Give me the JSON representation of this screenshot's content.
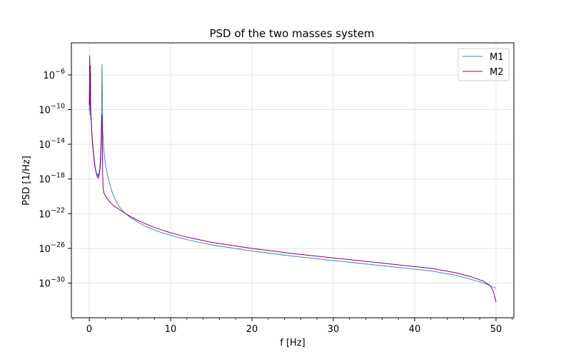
{
  "chart_data": {
    "type": "line",
    "title": "PSD of the two masses system",
    "xlabel": "f [Hz]",
    "ylabel": "PSD [1/Hz]",
    "x_scale": "linear",
    "y_scale": "log",
    "xlim": [
      -2.2,
      52.2
    ],
    "ylim_log10": [
      -34,
      -2.3
    ],
    "x_ticks": [
      0,
      10,
      20,
      30,
      40,
      50
    ],
    "x_tick_labels": [
      "0",
      "10",
      "20",
      "30",
      "40",
      "50"
    ],
    "y_ticks_log10": [
      -30,
      -26,
      -22,
      -18,
      -14,
      -10,
      -6
    ],
    "y_tick_labels": [
      {
        "base": "10",
        "exp": "−30"
      },
      {
        "base": "10",
        "exp": "−26"
      },
      {
        "base": "10",
        "exp": "−22"
      },
      {
        "base": "10",
        "exp": "−18"
      },
      {
        "base": "10",
        "exp": "−14"
      },
      {
        "base": "10",
        "exp": "−10"
      },
      {
        "base": "10",
        "exp": "−6"
      }
    ],
    "grid": true,
    "legend_position": "top-right",
    "series": [
      {
        "name": "M1",
        "color": "#4682b4",
        "points_log10": [
          [
            0.0,
            -10.2
          ],
          [
            0.02,
            -9.0
          ],
          [
            0.04,
            -7.0
          ],
          [
            0.06,
            -4.3
          ],
          [
            0.08,
            -8.5
          ],
          [
            0.1,
            -10.6
          ],
          [
            0.13,
            -9.5
          ],
          [
            0.16,
            -10.3
          ],
          [
            0.2,
            -11.2
          ],
          [
            0.25,
            -11.0
          ],
          [
            0.3,
            -12.4
          ],
          [
            0.4,
            -13.6
          ],
          [
            0.5,
            -14.6
          ],
          [
            0.6,
            -15.6
          ],
          [
            0.7,
            -16.4
          ],
          [
            0.8,
            -17.0
          ],
          [
            0.9,
            -17.4
          ],
          [
            1.0,
            -17.6
          ],
          [
            1.05,
            -17.4
          ],
          [
            1.1,
            -17.7
          ],
          [
            1.2,
            -17.3
          ],
          [
            1.3,
            -16.6
          ],
          [
            1.4,
            -15.0
          ],
          [
            1.48,
            -12.5
          ],
          [
            1.53,
            -8.0
          ],
          [
            1.57,
            -4.8
          ],
          [
            1.61,
            -8.5
          ],
          [
            1.66,
            -12.5
          ],
          [
            1.8,
            -14.8
          ],
          [
            2.0,
            -16.4
          ],
          [
            2.3,
            -17.8
          ],
          [
            2.7,
            -19.2
          ],
          [
            3.0,
            -20.0
          ],
          [
            3.5,
            -20.9
          ],
          [
            4.0,
            -21.6
          ],
          [
            5.0,
            -22.4
          ],
          [
            6.0,
            -23.0
          ],
          [
            7.0,
            -23.5
          ],
          [
            8.0,
            -23.9
          ],
          [
            10.0,
            -24.5
          ],
          [
            12.0,
            -25.0
          ],
          [
            15.0,
            -25.6
          ],
          [
            20.0,
            -26.3
          ],
          [
            25.0,
            -26.9
          ],
          [
            30.0,
            -27.4
          ],
          [
            35.0,
            -27.9
          ],
          [
            40.0,
            -28.4
          ],
          [
            42.0,
            -28.6
          ],
          [
            45.0,
            -29.1
          ],
          [
            47.0,
            -29.6
          ],
          [
            48.5,
            -30.0
          ],
          [
            49.5,
            -30.4
          ],
          [
            50.0,
            -30.6
          ]
        ]
      },
      {
        "name": "M2",
        "color": "#800080",
        "points_log10": [
          [
            0.0,
            -9.5
          ],
          [
            0.02,
            -8.0
          ],
          [
            0.04,
            -6.0
          ],
          [
            0.06,
            -3.8
          ],
          [
            0.08,
            -7.0
          ],
          [
            0.1,
            -9.5
          ],
          [
            0.12,
            -6.5
          ],
          [
            0.14,
            -5.0
          ],
          [
            0.17,
            -9.0
          ],
          [
            0.2,
            -10.5
          ],
          [
            0.25,
            -11.5
          ],
          [
            0.3,
            -12.6
          ],
          [
            0.4,
            -14.0
          ],
          [
            0.5,
            -15.0
          ],
          [
            0.6,
            -15.9
          ],
          [
            0.7,
            -16.6
          ],
          [
            0.8,
            -17.1
          ],
          [
            0.9,
            -17.5
          ],
          [
            1.0,
            -17.8
          ],
          [
            1.1,
            -17.9
          ],
          [
            1.2,
            -17.6
          ],
          [
            1.3,
            -17.0
          ],
          [
            1.4,
            -15.9
          ],
          [
            1.47,
            -14.0
          ],
          [
            1.52,
            -11.0
          ],
          [
            1.56,
            -10.6
          ],
          [
            1.6,
            -13.0
          ],
          [
            1.64,
            -17.0
          ],
          [
            1.7,
            -19.0
          ],
          [
            1.8,
            -19.6
          ],
          [
            2.0,
            -20.0
          ],
          [
            2.5,
            -20.6
          ],
          [
            3.0,
            -21.1
          ],
          [
            4.0,
            -21.7
          ],
          [
            5.0,
            -22.3
          ],
          [
            6.0,
            -22.8
          ],
          [
            7.0,
            -23.2
          ],
          [
            8.0,
            -23.6
          ],
          [
            10.0,
            -24.2
          ],
          [
            12.0,
            -24.7
          ],
          [
            15.0,
            -25.3
          ],
          [
            20.0,
            -26.0
          ],
          [
            25.0,
            -26.6
          ],
          [
            30.0,
            -27.1
          ],
          [
            35.0,
            -27.6
          ],
          [
            40.0,
            -28.1
          ],
          [
            42.0,
            -28.3
          ],
          [
            45.0,
            -28.8
          ],
          [
            47.0,
            -29.3
          ],
          [
            48.5,
            -29.8
          ],
          [
            49.3,
            -30.3
          ],
          [
            49.7,
            -31.0
          ],
          [
            49.9,
            -31.8
          ],
          [
            50.0,
            -32.2
          ]
        ]
      }
    ]
  }
}
